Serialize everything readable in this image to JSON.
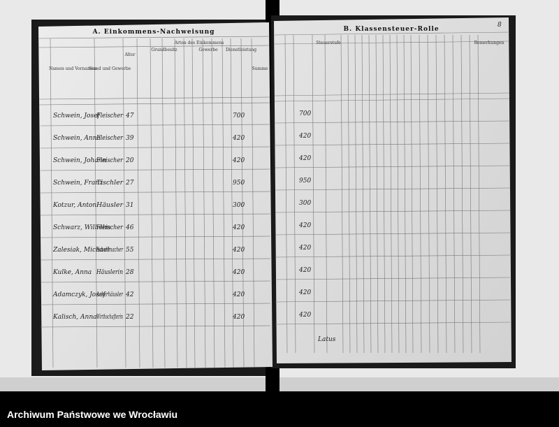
{
  "left_page": {
    "title": "A. Einkommens-Nachweisung",
    "headers": [
      "Namen und Vornamen",
      "Stand und Gewerbe",
      "Alter",
      "Arten des Einkommens",
      "Grundbesitz",
      "Gewerbe",
      "Dienstleistung",
      "Summe"
    ]
  },
  "right_page": {
    "title": "B. Klassensteuer-Rolle",
    "page_number": "8",
    "headers": [
      "Steuerstufe",
      "Bemerkungen"
    ],
    "footer": "Latus"
  },
  "rows": [
    {
      "name": "Schwein, Josef",
      "occupation": "Fleischer",
      "age": "47",
      "income": "700"
    },
    {
      "name": "Schwein, Anna",
      "occupation": "Fleischer",
      "age": "39",
      "income": "420"
    },
    {
      "name": "Schwein, Johann",
      "occupation": "Fleischer",
      "age": "20",
      "income": "420"
    },
    {
      "name": "Schwein, Franz",
      "occupation": "Tischler",
      "age": "27",
      "income": "950"
    },
    {
      "name": "Kotzur, Anton",
      "occupation": "Häusler",
      "age": "31",
      "income": "300"
    },
    {
      "name": "Schwarz, Wilhelm",
      "occupation": "Fleischer",
      "age": "46",
      "income": "420"
    },
    {
      "name": "Zalesiak, Michael",
      "occupation": "Schuhmacher",
      "age": "55",
      "income": "420"
    },
    {
      "name": "Kulke, Anna",
      "occupation": "Häuslerin",
      "age": "28",
      "income": "420"
    },
    {
      "name": "Adamczyk, Josef",
      "occupation": "Ackerhäusler",
      "age": "42",
      "income": "420"
    },
    {
      "name": "Kalisch, Anna",
      "occupation": "Wirthschafterin",
      "age": "22",
      "income": "420"
    }
  ],
  "footer_bar": "Archiwum Państwowe we Wrocławiu"
}
